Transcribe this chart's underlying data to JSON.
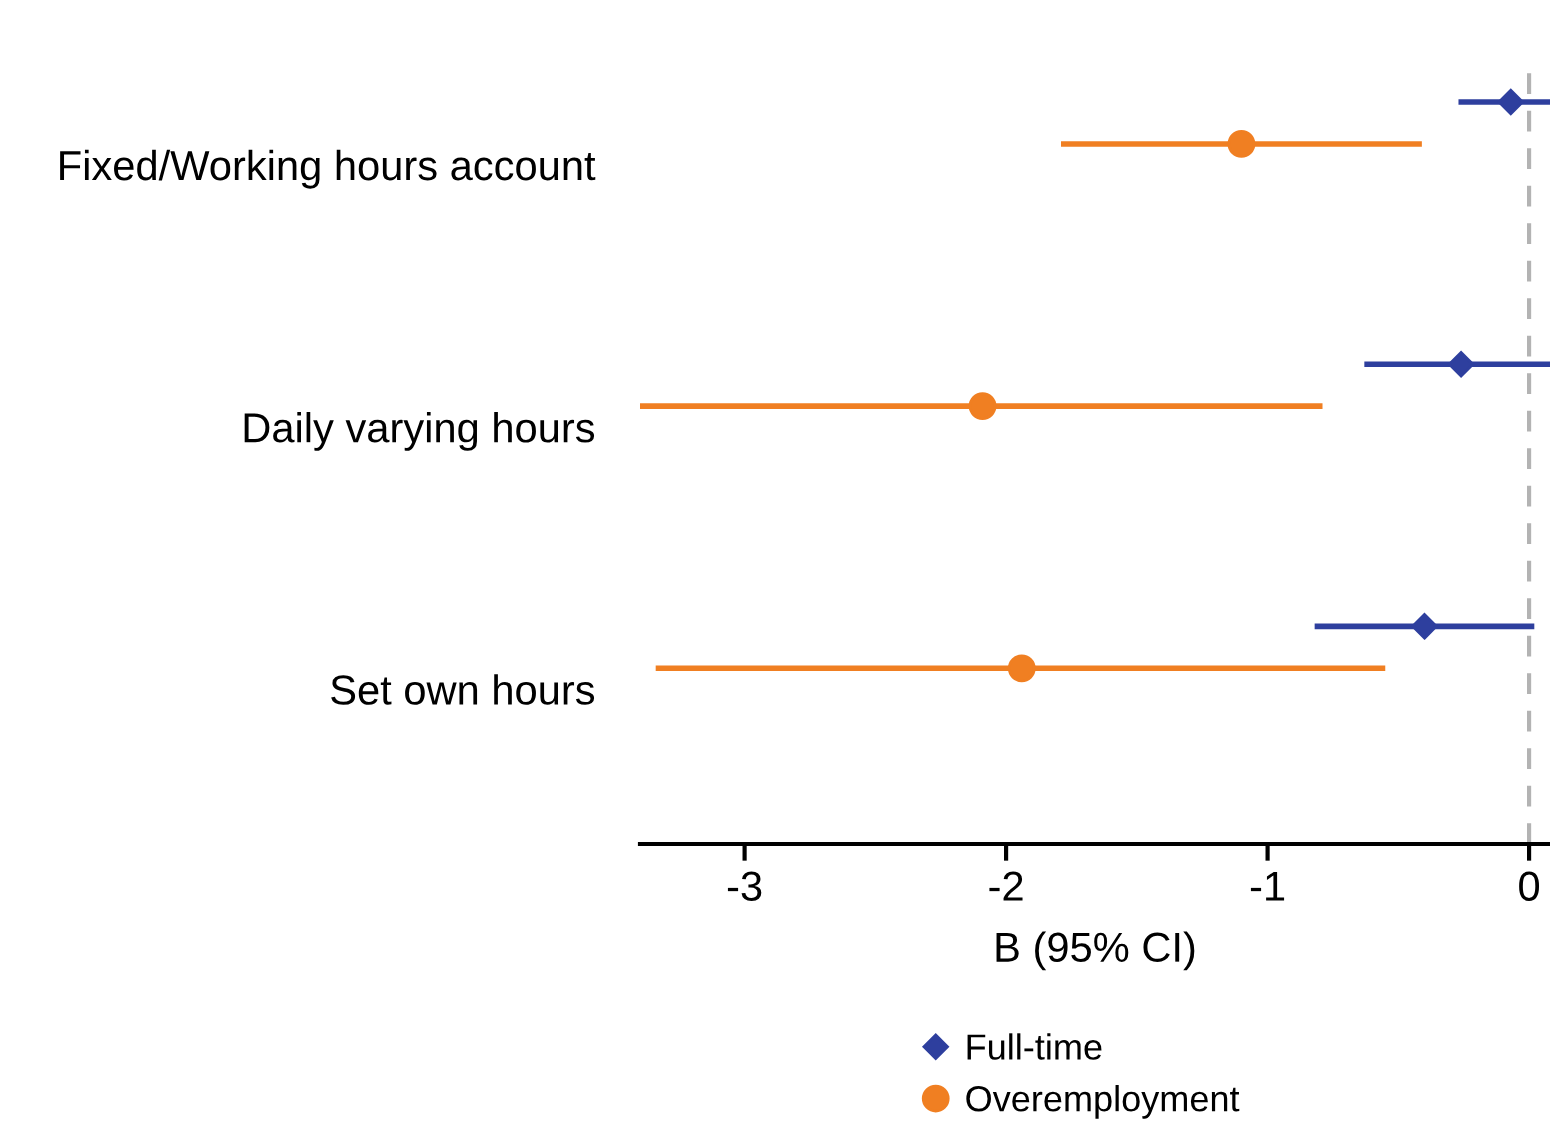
{
  "chart_data": {
    "type": "scatter",
    "orientation": "horizontal",
    "categories": [
      "Fixed/Working hours account",
      "Daily varying hours",
      "Set own hours"
    ],
    "xlabel": "B (95% CI)",
    "xlim": [
      -3.4,
      0.08
    ],
    "xticks": [
      {
        "value": -3,
        "label": "-3"
      },
      {
        "value": -2,
        "label": "-2"
      },
      {
        "value": -1,
        "label": "-1"
      },
      0
    ],
    "series": [
      {
        "name": "Full-time",
        "color": "#2e3f9e",
        "marker": "diamond",
        "values": [
          -0.07,
          -0.26,
          -0.4
        ],
        "errors": [
          [
            -0.27,
            0.08
          ],
          [
            -0.63,
            0.08
          ],
          [
            -0.82,
            0.02
          ]
        ]
      },
      {
        "name": "Overemployment",
        "color": "#f07f22",
        "marker": "circle",
        "values": [
          -1.1,
          -2.09,
          -1.94
        ],
        "errors": [
          [
            -1.79,
            -0.41
          ],
          [
            -3.4,
            -0.79
          ],
          [
            -3.34,
            -0.55
          ]
        ]
      }
    ],
    "ref_lines": [
      {
        "axis": "x",
        "value": 0,
        "color": "#b3b3b3",
        "line_style": "dashed"
      }
    ],
    "grid": false,
    "legend": "bottom"
  }
}
